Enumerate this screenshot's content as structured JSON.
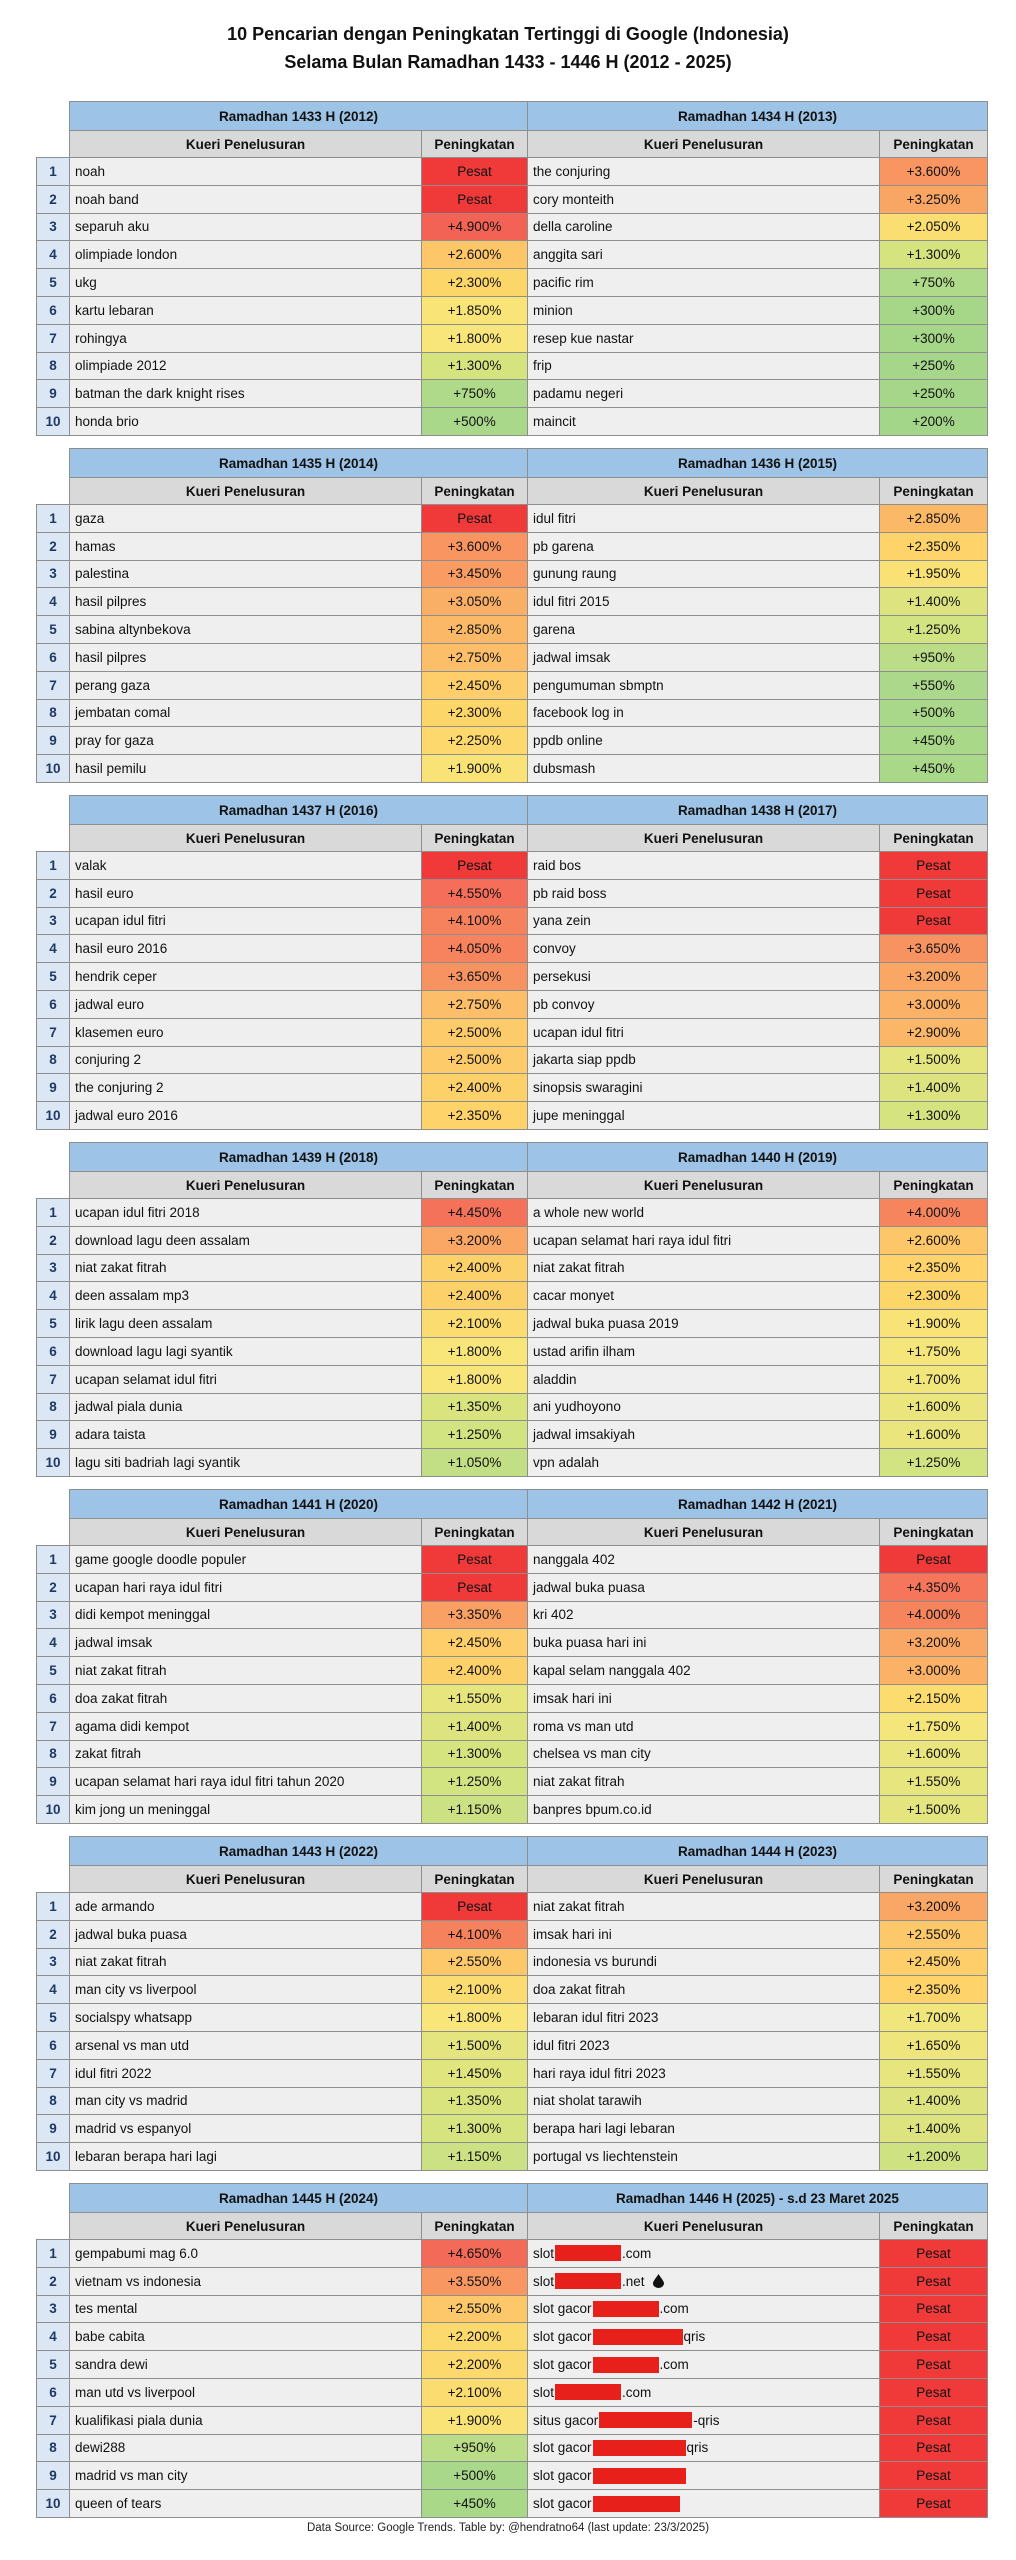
{
  "header": {
    "title_line1": "10 Pencarian dengan Peningkatan Tertinggi di Google (Indonesia)",
    "title_line2": "Selama Bulan Ramadhan 1433 - 1446 H (2012 - 2025)"
  },
  "blocks": [
    {
      "ranks": [
        1,
        2,
        3,
        4,
        5,
        6,
        7,
        8,
        9,
        10
      ],
      "left": {
        "title": "Ramadhan 1433 H (2012)",
        "col_query": "Kueri Penelusuran",
        "col_increase": "Peningkatan",
        "rows": [
          [
            "noah",
            "Pesat"
          ],
          [
            "noah band",
            "Pesat"
          ],
          [
            "separuh aku",
            "+4.900%"
          ],
          [
            "olimpiade london",
            "+2.600%"
          ],
          [
            "ukg",
            "+2.300%"
          ],
          [
            "kartu lebaran",
            "+1.850%"
          ],
          [
            "rohingya",
            "+1.800%"
          ],
          [
            "olimpiade 2012",
            "+1.300%"
          ],
          [
            "batman the dark knight rises",
            "+750%"
          ],
          [
            "honda brio",
            "+500%"
          ]
        ]
      },
      "right": {
        "title": "Ramadhan 1434 H (2013)",
        "col_query": "Kueri Penelusuran",
        "col_increase": "Peningkatan",
        "rows": [
          [
            "the conjuring",
            "+3.600%"
          ],
          [
            "cory monteith",
            "+3.250%"
          ],
          [
            "della caroline",
            "+2.050%"
          ],
          [
            "anggita sari",
            "+1.300%"
          ],
          [
            "pacific rim",
            "+750%"
          ],
          [
            "minion",
            "+300%"
          ],
          [
            "resep kue nastar",
            "+300%"
          ],
          [
            "frip",
            "+250%"
          ],
          [
            "padamu negeri",
            "+250%"
          ],
          [
            "maincit",
            "+200%"
          ]
        ]
      }
    },
    {
      "ranks": [
        1,
        2,
        3,
        4,
        5,
        6,
        7,
        8,
        9,
        10
      ],
      "left": {
        "title": "Ramadhan 1435 H (2014)",
        "col_query": "Kueri Penelusuran",
        "col_increase": "Peningkatan",
        "rows": [
          [
            "gaza",
            "Pesat"
          ],
          [
            "hamas",
            "+3.600%"
          ],
          [
            "palestina",
            "+3.450%"
          ],
          [
            "hasil pilpres",
            "+3.050%"
          ],
          [
            "sabina altynbekova",
            "+2.850%"
          ],
          [
            "hasil pilpres",
            "+2.750%"
          ],
          [
            "perang gaza",
            "+2.450%"
          ],
          [
            "jembatan comal",
            "+2.300%"
          ],
          [
            "pray for gaza",
            "+2.250%"
          ],
          [
            "hasil pemilu",
            "+1.900%"
          ]
        ]
      },
      "right": {
        "title": "Ramadhan 1436 H (2015)",
        "col_query": "Kueri Penelusuran",
        "col_increase": "Peningkatan",
        "rows": [
          [
            "idul fitri",
            "+2.850%"
          ],
          [
            "pb garena",
            "+2.350%"
          ],
          [
            "gunung raung",
            "+1.950%"
          ],
          [
            "idul fitri 2015",
            "+1.400%"
          ],
          [
            "garena",
            "+1.250%"
          ],
          [
            "jadwal imsak",
            "+950%"
          ],
          [
            "pengumuman sbmptn",
            "+550%"
          ],
          [
            "facebook log in",
            "+500%"
          ],
          [
            "ppdb online",
            "+450%"
          ],
          [
            "dubsmash",
            "+450%"
          ]
        ]
      }
    },
    {
      "ranks": [
        1,
        2,
        3,
        4,
        5,
        6,
        7,
        8,
        9,
        10
      ],
      "left": {
        "title": "Ramadhan 1437 H (2016)",
        "col_query": "Kueri Penelusuran",
        "col_increase": "Peningkatan",
        "rows": [
          [
            "valak",
            "Pesat"
          ],
          [
            "hasil euro",
            "+4.550%"
          ],
          [
            "ucapan idul fitri",
            "+4.100%"
          ],
          [
            "hasil euro 2016",
            "+4.050%"
          ],
          [
            "hendrik ceper",
            "+3.650%"
          ],
          [
            "jadwal euro",
            "+2.750%"
          ],
          [
            "klasemen euro",
            "+2.500%"
          ],
          [
            "conjuring 2",
            "+2.500%"
          ],
          [
            "the conjuring 2",
            "+2.400%"
          ],
          [
            "jadwal euro 2016",
            "+2.350%"
          ]
        ]
      },
      "right": {
        "title": "Ramadhan 1438 H (2017)",
        "col_query": "Kueri Penelusuran",
        "col_increase": "Peningkatan",
        "rows": [
          [
            "raid bos",
            "Pesat"
          ],
          [
            "pb raid boss",
            "Pesat"
          ],
          [
            "yana zein",
            "Pesat"
          ],
          [
            "convoy",
            "+3.650%"
          ],
          [
            "persekusi",
            "+3.200%"
          ],
          [
            "pb convoy",
            "+3.000%"
          ],
          [
            "ucapan idul fitri",
            "+2.900%"
          ],
          [
            "jakarta siap ppdb",
            "+1.500%"
          ],
          [
            "sinopsis swaragini",
            "+1.400%"
          ],
          [
            "jupe meninggal",
            "+1.300%"
          ]
        ]
      }
    },
    {
      "ranks": [
        1,
        2,
        3,
        4,
        5,
        6,
        7,
        8,
        9,
        10
      ],
      "left": {
        "title": "Ramadhan 1439 H (2018)",
        "col_query": "Kueri Penelusuran",
        "col_increase": "Peningkatan",
        "rows": [
          [
            "ucapan idul fitri 2018",
            "+4.450%"
          ],
          [
            "download lagu deen assalam",
            "+3.200%"
          ],
          [
            "niat zakat fitrah",
            "+2.400%"
          ],
          [
            "deen assalam mp3",
            "+2.400%"
          ],
          [
            "lirik lagu deen assalam",
            "+2.100%"
          ],
          [
            "download lagu lagi syantik",
            "+1.800%"
          ],
          [
            "ucapan selamat idul fitri",
            "+1.800%"
          ],
          [
            "jadwal piala dunia",
            "+1.350%"
          ],
          [
            "adara taista",
            "+1.250%"
          ],
          [
            "lagu siti badriah lagi syantik",
            "+1.050%"
          ]
        ]
      },
      "right": {
        "title": "Ramadhan 1440 H (2019)",
        "col_query": "Kueri Penelusuran",
        "col_increase": "Peningkatan",
        "rows": [
          [
            "a whole new world",
            "+4.000%"
          ],
          [
            "ucapan selamat hari raya idul fitri",
            "+2.600%"
          ],
          [
            "niat zakat fitrah",
            "+2.350%"
          ],
          [
            "cacar monyet",
            "+2.300%"
          ],
          [
            "jadwal buka puasa 2019",
            "+1.900%"
          ],
          [
            "ustad arifin ilham",
            "+1.750%"
          ],
          [
            "aladdin",
            "+1.700%"
          ],
          [
            "ani yudhoyono",
            "+1.600%"
          ],
          [
            "jadwal imsakiyah",
            "+1.600%"
          ],
          [
            "vpn adalah",
            "+1.250%"
          ]
        ]
      }
    },
    {
      "ranks": [
        1,
        2,
        3,
        4,
        5,
        6,
        7,
        8,
        9,
        10
      ],
      "left": {
        "title": "Ramadhan 1441 H (2020)",
        "col_query": "Kueri Penelusuran",
        "col_increase": "Peningkatan",
        "rows": [
          [
            "game google doodle populer",
            "Pesat"
          ],
          [
            "ucapan hari raya idul fitri",
            "Pesat"
          ],
          [
            "didi kempot meninggal",
            "+3.350%"
          ],
          [
            "jadwal imsak",
            "+2.450%"
          ],
          [
            "niat zakat fitrah",
            "+2.400%"
          ],
          [
            "doa zakat fitrah",
            "+1.550%"
          ],
          [
            "agama didi kempot",
            "+1.400%"
          ],
          [
            "zakat fitrah",
            "+1.300%"
          ],
          [
            "ucapan selamat hari raya idul fitri tahun 2020",
            "+1.250%"
          ],
          [
            "kim jong un meninggal",
            "+1.150%"
          ]
        ]
      },
      "right": {
        "title": "Ramadhan 1442 H (2021)",
        "col_query": "Kueri Penelusuran",
        "col_increase": "Peningkatan",
        "rows": [
          [
            "nanggala 402",
            "Pesat"
          ],
          [
            "jadwal buka puasa",
            "+4.350%"
          ],
          [
            "kri 402",
            "+4.000%"
          ],
          [
            "buka puasa hari ini",
            "+3.200%"
          ],
          [
            "kapal selam nanggala 402",
            "+3.000%"
          ],
          [
            "imsak hari ini",
            "+2.150%"
          ],
          [
            "roma vs man utd",
            "+1.750%"
          ],
          [
            "chelsea vs man city",
            "+1.600%"
          ],
          [
            "niat zakat fitrah",
            "+1.550%"
          ],
          [
            "banpres bpum.co.id",
            "+1.500%"
          ]
        ]
      }
    },
    {
      "ranks": [
        1,
        2,
        3,
        4,
        5,
        6,
        7,
        8,
        9,
        10
      ],
      "left": {
        "title": "Ramadhan 1443 H (2022)",
        "col_query": "Kueri Penelusuran",
        "col_increase": "Peningkatan",
        "rows": [
          [
            "ade armando",
            "Pesat"
          ],
          [
            "jadwal buka puasa",
            "+4.100%"
          ],
          [
            "niat zakat fitrah",
            "+2.550%"
          ],
          [
            "man city vs liverpool",
            "+2.100%"
          ],
          [
            "socialspy whatsapp",
            "+1.800%"
          ],
          [
            "arsenal vs man utd",
            "+1.500%"
          ],
          [
            "idul fitri 2022",
            "+1.450%"
          ],
          [
            "man city vs madrid",
            "+1.350%"
          ],
          [
            "madrid vs espanyol",
            "+1.300%"
          ],
          [
            "lebaran berapa hari lagi",
            "+1.150%"
          ]
        ]
      },
      "right": {
        "title": "Ramadhan 1444 H (2023)",
        "col_query": "Kueri Penelusuran",
        "col_increase": "Peningkatan",
        "rows": [
          [
            "niat zakat fitrah",
            "+3.200%"
          ],
          [
            "imsak hari ini",
            "+2.550%"
          ],
          [
            "indonesia vs burundi",
            "+2.450%"
          ],
          [
            "doa zakat fitrah",
            "+2.350%"
          ],
          [
            "lebaran idul fitri 2023",
            "+1.700%"
          ],
          [
            "idul fitri 2023",
            "+1.650%"
          ],
          [
            "hari raya idul fitri 2023",
            "+1.550%"
          ],
          [
            "niat sholat tarawih",
            "+1.400%"
          ],
          [
            "berapa hari lagi lebaran",
            "+1.400%"
          ],
          [
            "portugal vs liechtenstein",
            "+1.200%"
          ]
        ]
      }
    },
    {
      "ranks": [
        1,
        2,
        3,
        4,
        5,
        6,
        7,
        8,
        9,
        10
      ],
      "left": {
        "title": "Ramadhan 1445 H (2024)",
        "col_query": "Kueri Penelusuran",
        "col_increase": "Peningkatan",
        "rows": [
          [
            "gempabumi mag 6.0",
            "+4.650%"
          ],
          [
            "vietnam vs indonesia",
            "+3.550%"
          ],
          [
            "tes mental",
            "+2.550%"
          ],
          [
            "babe cabita",
            "+2.200%"
          ],
          [
            "sandra dewi",
            "+2.200%"
          ],
          [
            "man utd vs liverpool",
            "+2.100%"
          ],
          [
            "kualifikasi piala dunia",
            "+1.900%"
          ],
          [
            "dewi288",
            "+950%"
          ],
          [
            "madrid vs man city",
            "+500%"
          ],
          [
            "queen of tears",
            "+450%"
          ]
        ]
      },
      "right": {
        "title": "Ramadhan 1446 H (2025) - s.d 23 Maret 2025",
        "col_query": "Kueri Penelusuran",
        "col_increase": "Peningkatan",
        "rows": [
          [
            {
              "before": "slot",
              "after": ".com"
            },
            "Pesat"
          ],
          [
            {
              "before": "slot",
              "after": ".net"
            },
            "Pesat"
          ],
          [
            {
              "before": "slot gacor",
              "after": ".com"
            },
            "Pesat"
          ],
          [
            {
              "before": "slot gacor",
              "after": "qris"
            },
            "Pesat"
          ],
          [
            {
              "before": "slot gacor",
              "after": ".com"
            },
            "Pesat"
          ],
          [
            {
              "before": "slot",
              "after": ".com"
            },
            "Pesat"
          ],
          [
            {
              "before": "situs gacor",
              "after": "-qris"
            },
            "Pesat"
          ],
          [
            {
              "before": "slot gacor",
              "after": "qris"
            },
            "Pesat"
          ],
          [
            {
              "before": "slot gacor"
            },
            "Pesat"
          ],
          [
            {
              "before": "slot gacor"
            },
            "Pesat"
          ]
        ]
      }
    }
  ],
  "footer": {
    "source": "Data Source: Google Trends. Table by: @hendratno64 (last update: 23/3/2025)"
  }
}
